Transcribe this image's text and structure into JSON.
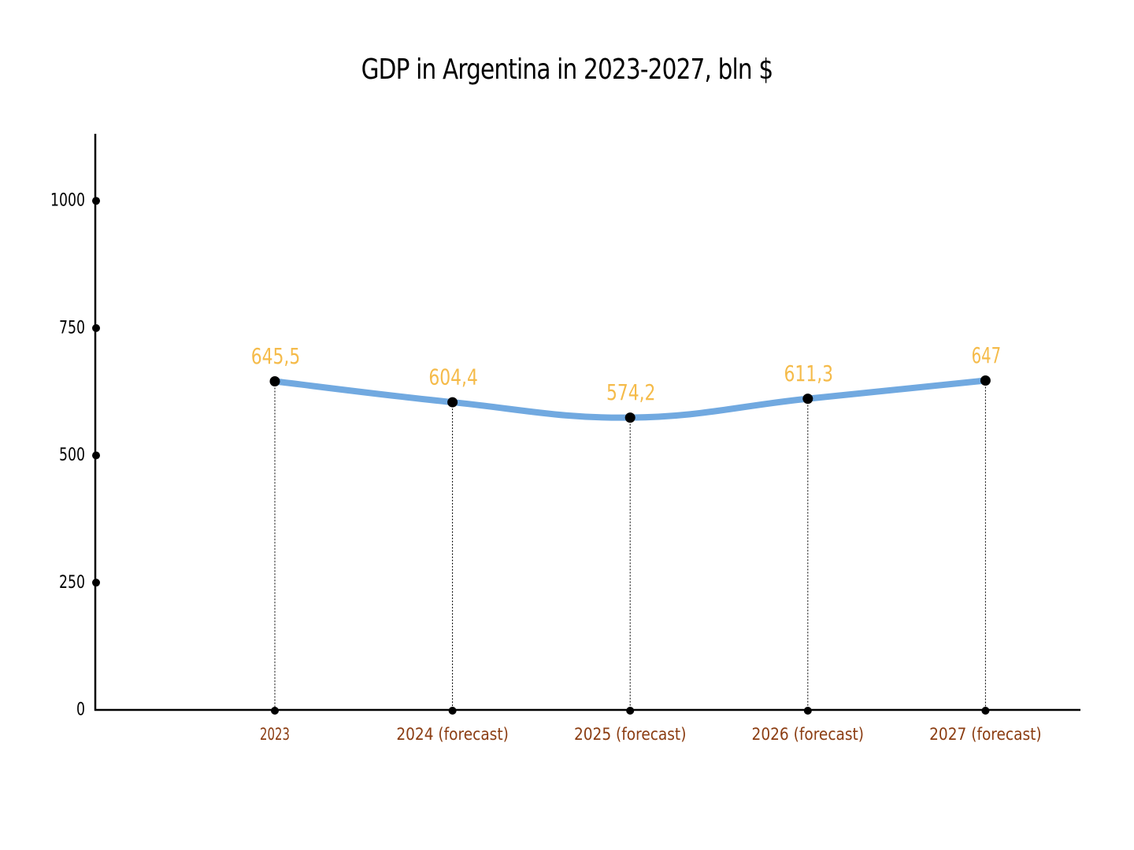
{
  "chart_data": {
    "type": "line",
    "title": "GDP in Argentina in 2023-2027, bln $",
    "xlabel": "",
    "ylabel": "",
    "categories": [
      "2023",
      "2024 (forecast)",
      "2025 (forecast)",
      "2026 (forecast)",
      "2027 (forecast)"
    ],
    "series": [
      {
        "values": [
          645.5,
          604.4,
          574.2,
          611.3,
          647
        ],
        "labels": [
          "645,5",
          "604,4",
          "574,2",
          "611,3",
          "647"
        ]
      }
    ],
    "ylim": [
      0,
      1130
    ],
    "yticks": [
      0,
      250,
      500,
      750,
      1000
    ],
    "grid": false,
    "legend": "none",
    "colors": {
      "line": "#71a9e0",
      "data_label": "#f5bb4a",
      "x_tick_label": "#8b3d12",
      "axis": "#000000",
      "marker": "#000000"
    }
  }
}
